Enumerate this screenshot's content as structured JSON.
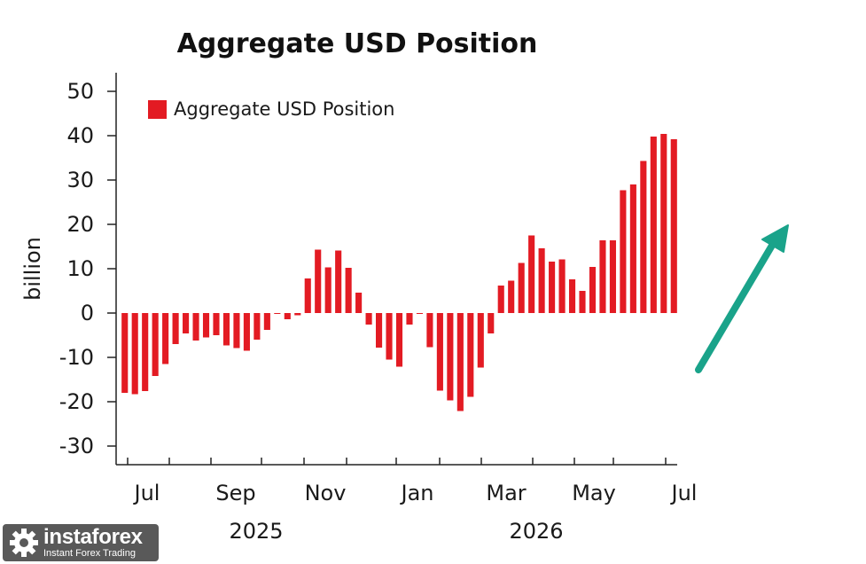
{
  "chart_data": {
    "type": "bar",
    "title": "Aggregate USD Position",
    "ylabel": "billion",
    "ylim": [
      -35,
      55
    ],
    "yticks": [
      50,
      40,
      30,
      20,
      10,
      0,
      -10,
      -20,
      -30
    ],
    "ytick_labels": [
      "50",
      "40",
      "30",
      "20",
      "10",
      "0",
      "-10",
      "-20",
      "-30"
    ],
    "x_month_labels": [
      "Jul",
      "Sep",
      "Nov",
      "Jan",
      "Mar",
      "May",
      "Jul"
    ],
    "x_year_labels": [
      "2025",
      "2026"
    ],
    "legend": {
      "placement": "top-left"
    },
    "color": "#e31b23",
    "arrow_color": "#1aa38a",
    "series": [
      {
        "name": "Aggregate USD Position",
        "values": [
          -18.0,
          -18.3,
          -17.6,
          -14.2,
          -11.5,
          -7.0,
          -4.6,
          -6.2,
          -5.5,
          -5.0,
          -7.3,
          -7.9,
          -8.5,
          -6.0,
          -3.8,
          0.0,
          -1.4,
          -0.5,
          7.8,
          14.3,
          10.3,
          14.1,
          10.2,
          4.6,
          -2.6,
          -7.8,
          -10.5,
          -12.1,
          -2.6,
          0.0,
          -7.7,
          -17.5,
          -19.7,
          -22.1,
          -18.9,
          -12.3,
          -4.6,
          6.2,
          7.3,
          11.3,
          17.5,
          14.6,
          11.6,
          12.1,
          7.6,
          5.0,
          10.4,
          16.4,
          16.4,
          27.7,
          29.0,
          34.3,
          39.8,
          40.4,
          39.2
        ]
      }
    ]
  },
  "watermark": {
    "brand": "instaforex",
    "tagline": "Instant Forex Trading"
  }
}
